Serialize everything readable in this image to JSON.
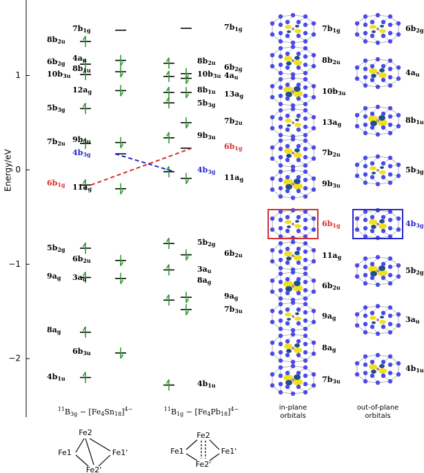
{
  "chart_data": {
    "type": "energy-level",
    "ylabel": "Energy/eV",
    "ylim": [
      -2.62,
      1.8
    ],
    "yticks": [
      {
        "value": -2,
        "label": "−2"
      },
      {
        "value": -1,
        "label": "−1"
      },
      0,
      1
    ],
    "level_color": "#000000",
    "electron_color": "#2e9a2e",
    "highlight": [
      {
        "orbital": "6b1g",
        "color": "#d62b2b"
      },
      {
        "orbital": "4b3g",
        "color": "#2424c8"
      }
    ],
    "complexes": [
      {
        "name": "11B3g − [Fe4Sn18]4−",
        "labels": [
          "7b1g",
          "8b2u",
          "4au",
          "6b2g",
          "8b1u",
          "10b3u",
          "12ag",
          "5b3g",
          "7b2u",
          "9b3u",
          "4b3g",
          "6b1g",
          "11ag",
          "5b2g",
          "6b2u",
          "9ag",
          "3au",
          "8ag",
          "6b3u",
          "4b1u"
        ],
        "levels": [
          [
            {
              "energy": 1.36,
              "electrons": 1
            },
            {
              "energy": 1.12,
              "electrons": 1
            },
            {
              "energy": 1.01,
              "electrons": 1
            },
            {
              "energy": 0.65,
              "electrons": 1
            },
            {
              "energy": 0.28,
              "electrons": 1
            },
            {
              "energy": -0.16,
              "electrons": 1,
              "link": "#d62b2b"
            },
            {
              "energy": -0.83,
              "electrons": 1
            },
            {
              "energy": -1.14,
              "electrons": 1
            },
            {
              "energy": -1.72,
              "electrons": 1
            },
            {
              "energy": -2.2,
              "electrons": 1
            }
          ],
          [
            {
              "energy": 1.48,
              "electrons": 0
            },
            {
              "energy": 1.16,
              "electrons": 1
            },
            {
              "energy": 1.04,
              "electrons": 1
            },
            {
              "energy": 0.84,
              "electrons": 1
            },
            {
              "energy": 0.29,
              "electrons": 1
            },
            {
              "energy": 0.17,
              "electrons": 0,
              "link": "#2424c8"
            },
            {
              "energy": -0.2,
              "electrons": 1
            },
            {
              "energy": -0.96,
              "electrons": 1
            },
            {
              "energy": -1.15,
              "electrons": 1
            },
            {
              "energy": -1.94,
              "electrons": 1
            }
          ]
        ],
        "structure": {
          "atoms": [
            "Fe2",
            "Fe1",
            "Fe1'",
            "Fe2'"
          ]
        }
      },
      {
        "name": "11B1g − [Fe4Pb18]4−",
        "labels": [
          "7b1g",
          "8b2u",
          "6b2g",
          "10b3u",
          "4au",
          "8b1u",
          "13ag",
          "5b3g",
          "7b2u",
          "9b3u",
          "6b1g",
          "4b3g",
          "11ag",
          "5b2g",
          "6b2u",
          "3au",
          "8ag",
          "9ag",
          "7b3u",
          "4b1u"
        ],
        "levels": [
          [
            {
              "energy": 1.13,
              "electrons": 1
            },
            {
              "energy": 0.99,
              "electrons": 1
            },
            {
              "energy": 0.82,
              "electrons": 1
            },
            {
              "energy": 0.71,
              "electrons": 1
            },
            {
              "energy": 0.34,
              "electrons": 1
            },
            {
              "energy": -0.02,
              "electrons": 1,
              "link": "#2424c8"
            },
            {
              "energy": -0.78,
              "electrons": 1
            },
            {
              "energy": -1.06,
              "electrons": 1
            },
            {
              "energy": -1.38,
              "electrons": 1
            },
            {
              "energy": -2.28,
              "electrons": 1
            }
          ],
          [
            {
              "energy": 1.5,
              "electrons": 0
            },
            {
              "energy": 1.02,
              "electrons": 1
            },
            {
              "energy": 0.97,
              "electrons": 1
            },
            {
              "energy": 0.82,
              "electrons": 1
            },
            {
              "energy": 0.5,
              "electrons": 1
            },
            {
              "energy": 0.23,
              "electrons": 0,
              "link": "#d62b2b"
            },
            {
              "energy": -0.09,
              "electrons": 1
            },
            {
              "energy": -0.9,
              "electrons": 1
            },
            {
              "energy": -1.35,
              "electrons": 1
            },
            {
              "energy": -1.48,
              "electrons": 1
            }
          ]
        ],
        "structure": {
          "atoms": [
            "Fe2",
            "Fe1",
            "Fe1'",
            "Fe2'"
          ]
        }
      }
    ],
    "orbitals": {
      "in_plane": {
        "caption": [
          "in-plane",
          "orbitals"
        ],
        "labels": [
          "7b1g",
          "8b2u",
          "10b3u",
          "13ag",
          "7b2u",
          "9b3u",
          "6b1g",
          "11ag",
          "6b2u",
          "9ag",
          "8ag",
          "7b3u"
        ]
      },
      "out_of_plane": {
        "caption": [
          "out-of-plane",
          "orbitals"
        ],
        "labels": [
          "6b2g",
          "4au",
          "8b1u",
          "5b3g",
          "4b3g",
          "5b2g",
          "3au",
          "4b1u"
        ]
      }
    }
  }
}
